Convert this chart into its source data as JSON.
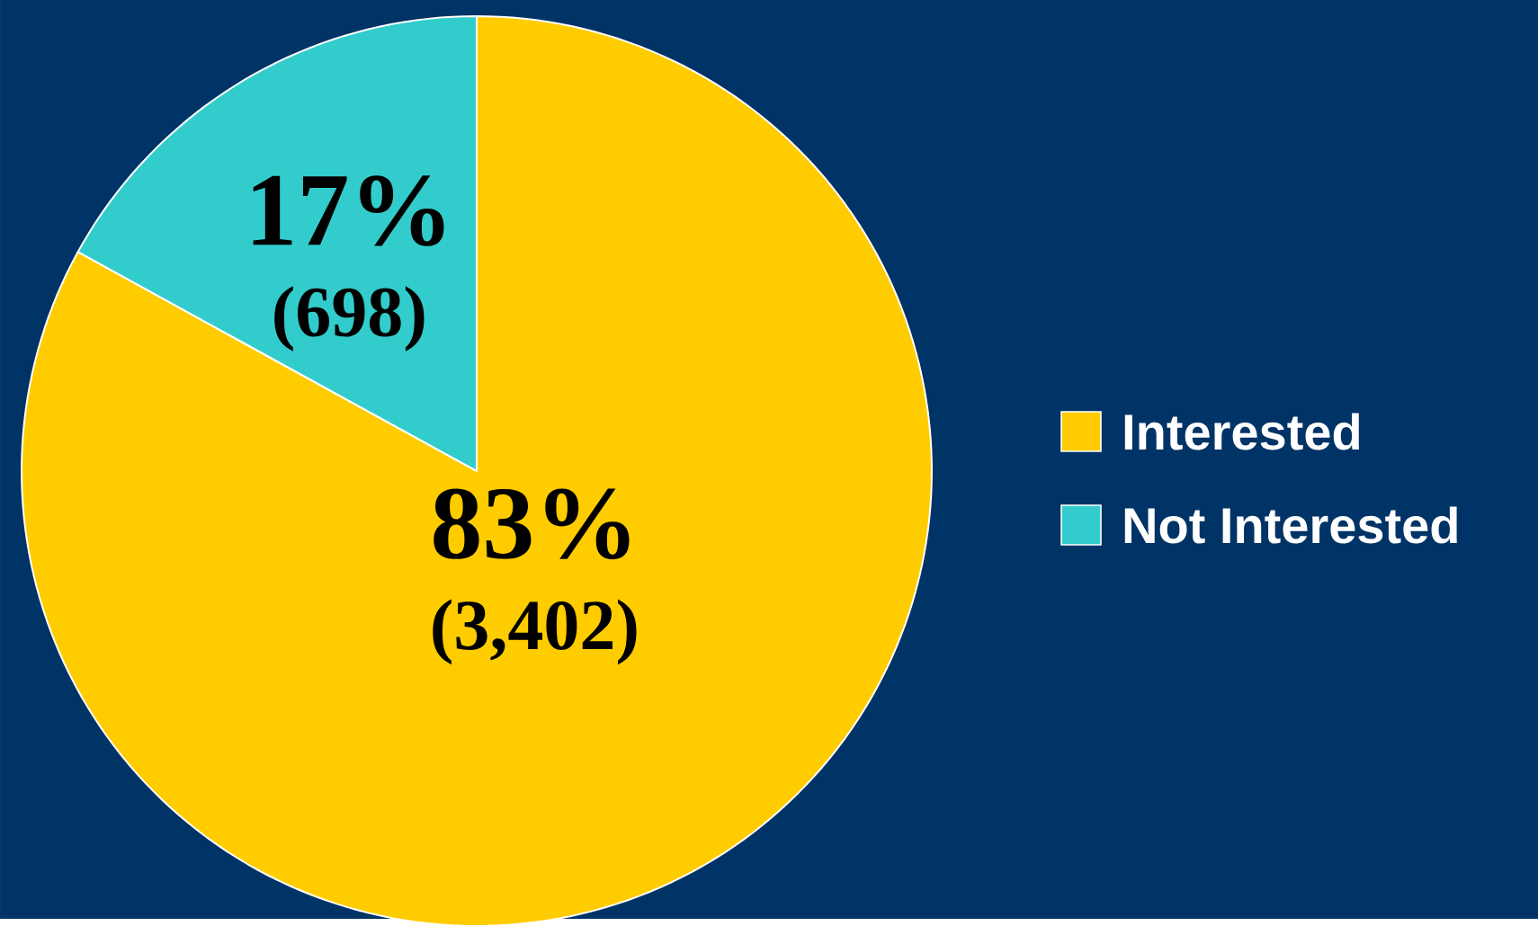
{
  "chart_data": {
    "type": "pie",
    "categories": [
      "Interested",
      "Not Interested"
    ],
    "values": [
      83,
      17
    ],
    "colors": [
      "#ffcc00",
      "#33cccc"
    ],
    "value_labels": [
      "83%",
      "17%"
    ],
    "annotations": [
      "(3,402)",
      "(698)"
    ],
    "legend": "right"
  }
}
